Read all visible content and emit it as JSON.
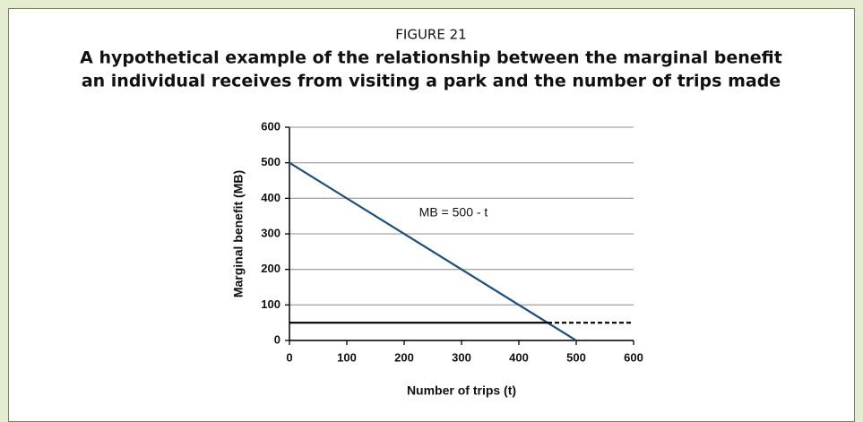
{
  "chart_data": {
    "type": "line",
    "figure_label": "FIGURE 21",
    "title": [
      "A hypothetical example of the relationship between the marginal benefit",
      "an individual receives from visiting a park and the number of trips made"
    ],
    "xlabel": "Number of trips (t)",
    "ylabel": "Marginal benefit (MB)",
    "annotation": "MB = 500 - t",
    "xlim": [
      0,
      600
    ],
    "xticks": [
      0,
      100,
      200,
      300,
      400,
      500,
      600
    ],
    "ylim": [
      0,
      600
    ],
    "yticks": [
      0,
      100,
      200,
      300,
      400,
      500,
      600
    ],
    "grid": true,
    "series": [
      {
        "color": "#1f4e7a",
        "x": [
          0,
          500
        ],
        "values": [
          500,
          0
        ],
        "dashed": false
      },
      {
        "color": "#000000",
        "x": [
          0,
          450
        ],
        "values": [
          50,
          50
        ],
        "dashed": false
      },
      {
        "color": "#000000",
        "x": [
          450,
          600
        ],
        "values": [
          50,
          50
        ],
        "dashed": true
      }
    ]
  }
}
